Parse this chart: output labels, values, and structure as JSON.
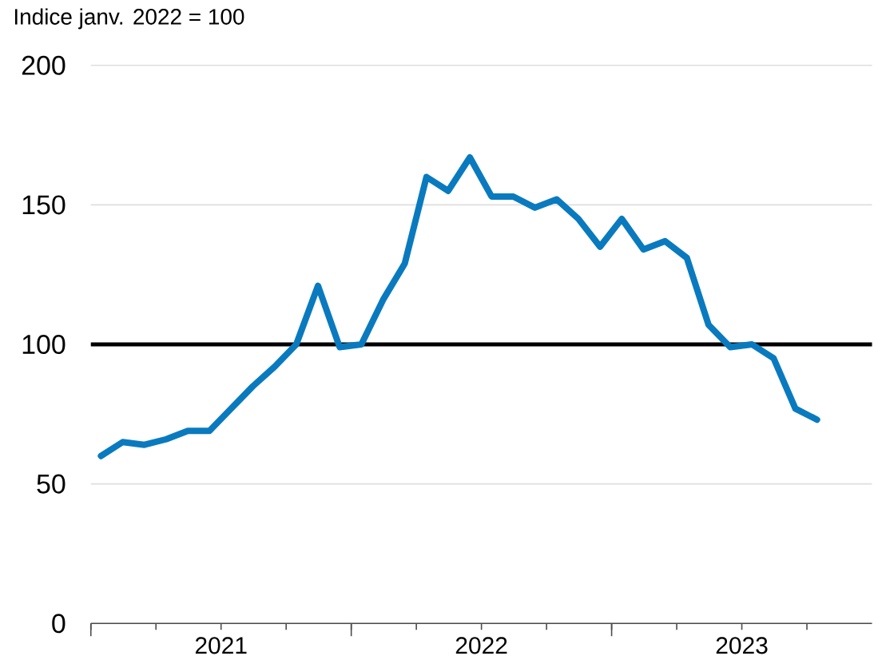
{
  "chart_data": {
    "type": "line",
    "title": "Indice janv. 2022 = 100",
    "x": [
      "2021-01-15",
      "2021-02-15",
      "2021-03-15",
      "2021-04-15",
      "2021-05-15",
      "2021-06-15",
      "2021-07-15",
      "2021-08-15",
      "2021-09-15",
      "2021-10-15",
      "2021-11-15",
      "2021-12-15",
      "2022-01-15",
      "2022-02-15",
      "2022-03-15",
      "2022-04-15",
      "2022-05-15",
      "2022-06-15",
      "2022-07-15",
      "2022-08-15",
      "2022-09-15",
      "2022-10-15",
      "2022-11-15",
      "2022-12-15",
      "2023-01-15",
      "2023-02-15",
      "2023-03-15",
      "2023-04-15",
      "2023-05-15",
      "2023-06-15",
      "2023-07-15",
      "2023-08-15",
      "2023-09-15",
      "2023-10-15"
    ],
    "series": [
      {
        "color": "#0a7abf",
        "values": [
          60,
          65,
          64,
          66,
          69,
          69,
          77,
          85,
          92,
          100,
          121,
          99,
          100,
          116,
          129,
          160,
          155,
          167,
          153,
          153,
          149,
          152,
          145,
          135,
          145,
          134,
          137,
          131,
          107,
          99,
          100,
          95,
          77,
          73
        ]
      }
    ],
    "xlim": [
      "2021-01",
      "2024-01"
    ],
    "xticks": [
      {
        "value": "2021-01",
        "label": null
      },
      {
        "value": "2021-04",
        "label": null
      },
      {
        "value": "2021-07",
        "label": "2021"
      },
      {
        "value": "2021-10",
        "label": null
      },
      {
        "value": "2022-01",
        "label": null
      },
      {
        "value": "2022-04",
        "label": null
      },
      {
        "value": "2022-07",
        "label": "2022"
      },
      {
        "value": "2022-10",
        "label": null
      },
      {
        "value": "2023-01",
        "label": null
      },
      {
        "value": "2023-04",
        "label": null
      },
      {
        "value": "2023-07",
        "label": "2023"
      },
      {
        "value": "2023-10",
        "label": null
      }
    ],
    "ylim": [
      0,
      200
    ],
    "yticks": [
      0,
      50,
      100,
      150,
      200
    ],
    "grid": "y",
    "marker": "none",
    "line_style": "solid",
    "ref_lines": [
      {
        "axis": "y",
        "value": 100,
        "color": "#000000"
      }
    ]
  }
}
